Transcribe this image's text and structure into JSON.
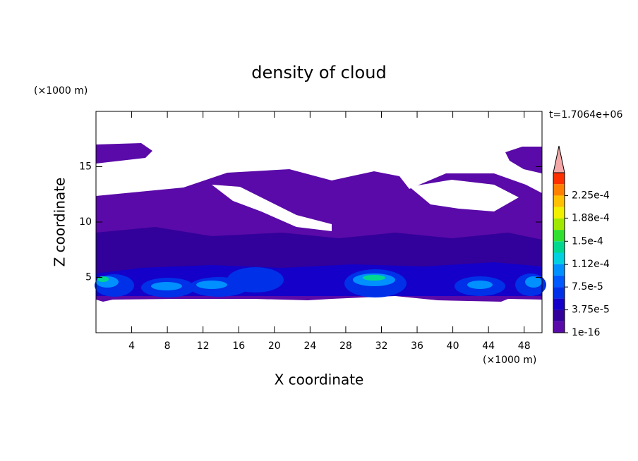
{
  "chart_data": {
    "type": "contour",
    "title": "density of cloud",
    "x_label": "X coordinate",
    "y_label": "Z coordinate",
    "x_unit": "(×1000 m)",
    "y_unit": "(×1000 m)",
    "annotation": "t=1.7064e+06",
    "xlim": [
      0,
      50
    ],
    "ylim": [
      0,
      20
    ],
    "xticks": [
      4,
      8,
      12,
      16,
      20,
      24,
      28,
      32,
      36,
      40,
      44,
      48
    ],
    "yticks": [
      5,
      10,
      15
    ],
    "colorbar": {
      "lim": [
        0,
        0.0002625
      ],
      "ticks": [
        {
          "value": 1e-16,
          "label": "1e-16"
        },
        {
          "value": 3.75e-05,
          "label": "3.75e-5"
        },
        {
          "value": 7.5e-05,
          "label": "7.5e-5"
        },
        {
          "value": 0.000112,
          "label": "1.12e-4"
        },
        {
          "value": 0.00015,
          "label": "1.5e-4"
        },
        {
          "value": 0.000188,
          "label": "1.88e-4"
        },
        {
          "value": 0.000225,
          "label": "2.25e-4"
        }
      ],
      "colors": [
        "#5a0aa8",
        "#32009a",
        "#1400c8",
        "#0030e8",
        "#0058ff",
        "#0090ff",
        "#00d0e0",
        "#00d890",
        "#30e030",
        "#a0e800",
        "#f0f000",
        "#ffc000",
        "#ff8000",
        "#ff3000"
      ],
      "extend_color": "#f4a8a8"
    }
  }
}
